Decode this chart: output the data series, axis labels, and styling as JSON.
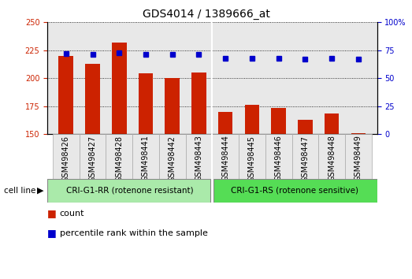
{
  "title": "GDS4014 / 1389666_at",
  "samples": [
    "GSM498426",
    "GSM498427",
    "GSM498428",
    "GSM498441",
    "GSM498442",
    "GSM498443",
    "GSM498444",
    "GSM498445",
    "GSM498446",
    "GSM498447",
    "GSM498448",
    "GSM498449"
  ],
  "bar_values": [
    220,
    213,
    232,
    204,
    200,
    205,
    170,
    176,
    173,
    163,
    168,
    151
  ],
  "percentile_values": [
    72,
    71,
    73,
    71,
    71,
    71,
    68,
    68,
    68,
    67,
    68,
    67
  ],
  "bar_color": "#cc2200",
  "percentile_color": "#0000cc",
  "ylim_left": [
    150,
    250
  ],
  "ylim_right": [
    0,
    100
  ],
  "yticks_left": [
    150,
    175,
    200,
    225,
    250
  ],
  "yticks_right": [
    0,
    25,
    50,
    75,
    100
  ],
  "group1_label": "CRI-G1-RR (rotenone resistant)",
  "group2_label": "CRI-G1-RS (rotenone sensitive)",
  "group1_count": 6,
  "group2_count": 6,
  "cell_line_label": "cell line",
  "legend_count_label": "count",
  "legend_pct_label": "percentile rank within the sample",
  "plot_bg_color": "#e8e8e8",
  "group1_color": "#aaeaaa",
  "group2_color": "#55dd55",
  "title_fontsize": 10,
  "tick_fontsize": 7,
  "axis_label_fontsize": 8,
  "legend_fontsize": 8
}
